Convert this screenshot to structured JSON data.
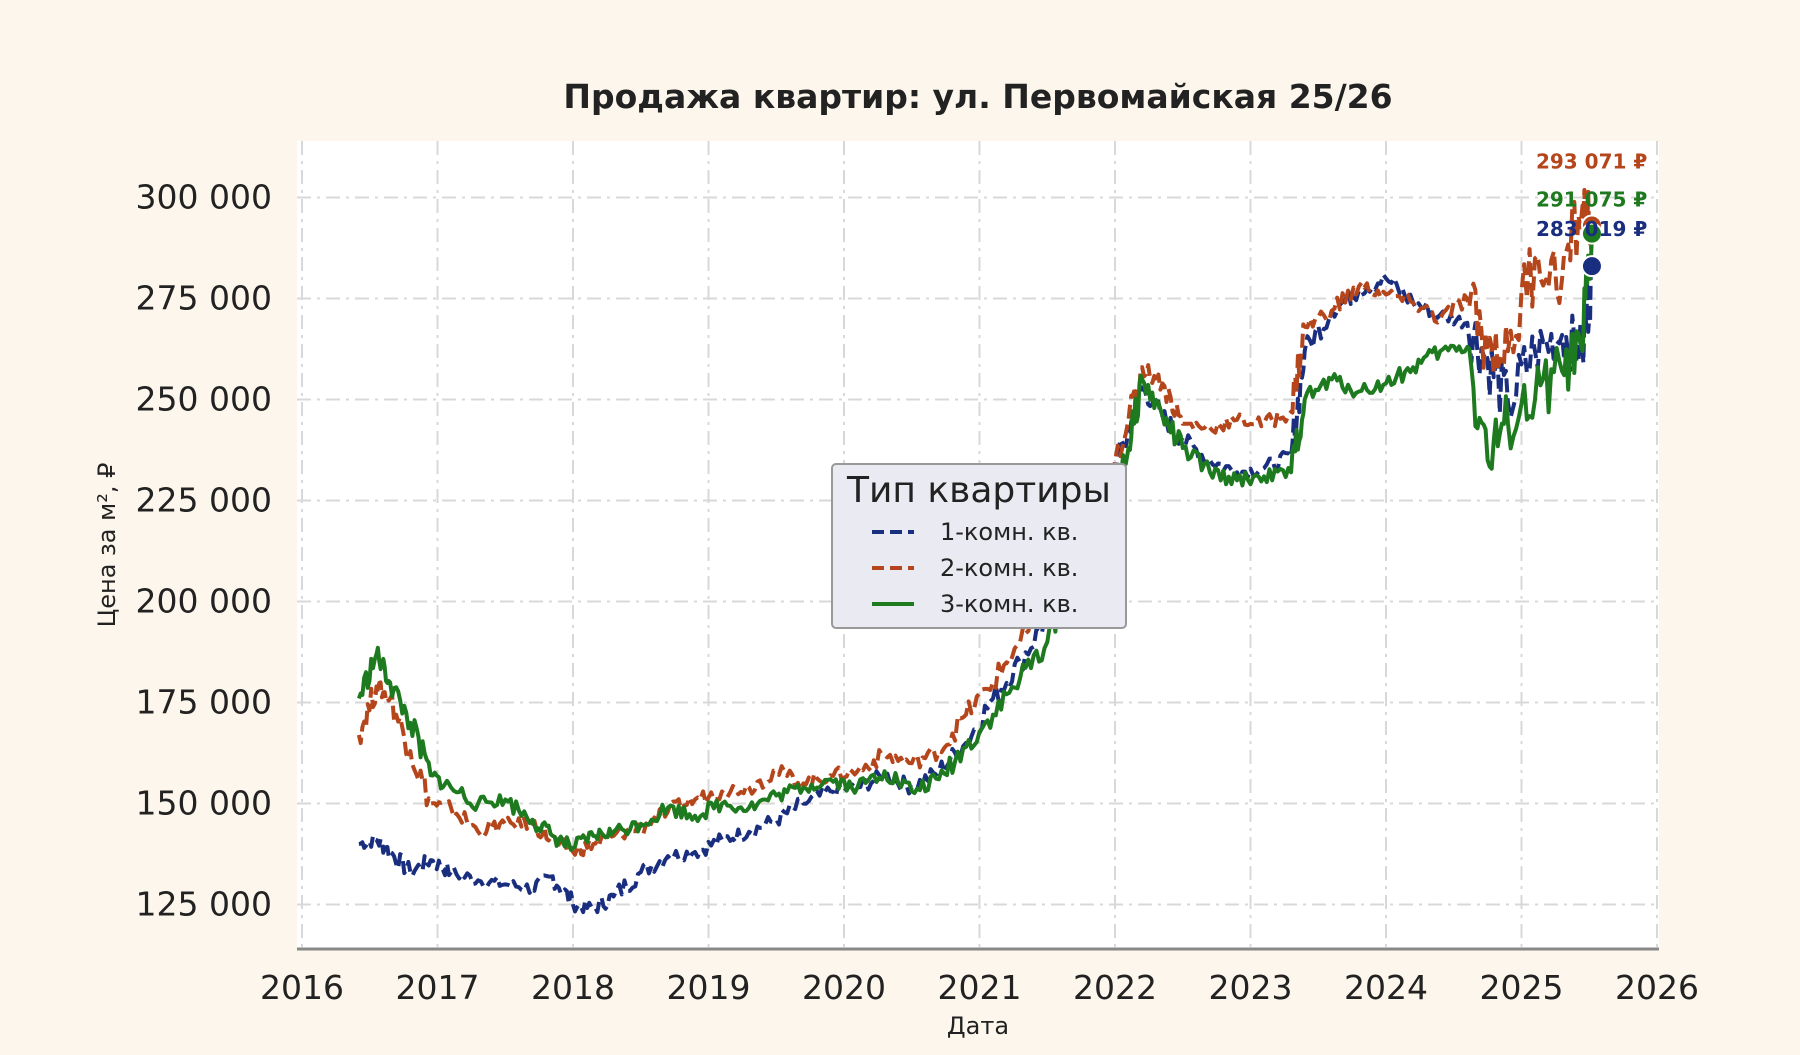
{
  "chart_data": {
    "type": "line",
    "title": "Продажа квартир: ул. Первомайская 25/26",
    "xlabel": "Дата",
    "ylabel": "Цена за м², ₽",
    "xlim": [
      2016,
      2026
    ],
    "ylim": [
      114000,
      314000
    ],
    "x_ticks": [
      "2016",
      "2017",
      "2018",
      "2019",
      "2020",
      "2021",
      "2022",
      "2023",
      "2024",
      "2025",
      "2026"
    ],
    "y_ticks": [
      {
        "value": 125000,
        "label": "125 000"
      },
      {
        "value": 150000,
        "label": "150 000"
      },
      {
        "value": 175000,
        "label": "175 000"
      },
      {
        "value": 200000,
        "label": "200 000"
      },
      {
        "value": 225000,
        "label": "225 000"
      },
      {
        "value": 250000,
        "label": "250 000"
      },
      {
        "value": 275000,
        "label": "275 000"
      },
      {
        "value": 300000,
        "label": "300 000"
      }
    ],
    "grid": true,
    "legend": {
      "title": "Тип квартиры",
      "placement": "center"
    },
    "series": [
      {
        "name": "1-комн. кв.",
        "color": "#1a2e80",
        "style": "dashed",
        "x": [
          2016.42,
          2016.55,
          2016.65,
          2016.8,
          2016.95,
          2017.1,
          2017.3,
          2017.5,
          2017.7,
          2017.85,
          2018.0,
          2018.15,
          2018.3,
          2018.5,
          2018.7,
          2018.9,
          2019.1,
          2019.3,
          2019.5,
          2019.7,
          2019.9,
          2020.1,
          2020.3,
          2020.5,
          2020.7,
          2020.9,
          2021.1,
          2021.3,
          2021.5,
          2021.7,
          2021.9,
          2022.1,
          2022.2,
          2022.35,
          2022.5,
          2022.7,
          2022.9,
          2023.1,
          2023.3,
          2023.4,
          2023.6,
          2023.8,
          2024.0,
          2024.2,
          2024.4,
          2024.6,
          2024.75,
          2024.9,
          2025.1,
          2025.3,
          2025.45,
          2025.52
        ],
        "values": [
          140000,
          141000,
          138000,
          133000,
          136000,
          133000,
          131000,
          130000,
          129000,
          132000,
          125000,
          124000,
          127000,
          133000,
          137000,
          138000,
          141000,
          143000,
          146000,
          150000,
          153000,
          154000,
          157000,
          154000,
          158000,
          165000,
          176000,
          185000,
          196000,
          210000,
          222000,
          242000,
          253000,
          246000,
          240000,
          235000,
          232000,
          233000,
          236000,
          262000,
          272000,
          277000,
          280000,
          274000,
          271000,
          269000,
          260000,
          249000,
          262000,
          266000,
          262000,
          283019
        ]
      },
      {
        "name": "2-комн. кв.",
        "color": "#b5451b",
        "style": "dashed",
        "x": [
          2016.42,
          2016.55,
          2016.65,
          2016.8,
          2016.95,
          2017.1,
          2017.3,
          2017.5,
          2017.7,
          2017.85,
          2018.0,
          2018.15,
          2018.3,
          2018.5,
          2018.7,
          2018.9,
          2019.1,
          2019.3,
          2019.5,
          2019.7,
          2019.9,
          2020.1,
          2020.3,
          2020.5,
          2020.7,
          2020.9,
          2021.1,
          2021.3,
          2021.5,
          2021.7,
          2021.9,
          2022.1,
          2022.2,
          2022.35,
          2022.5,
          2022.7,
          2022.9,
          2023.1,
          2023.3,
          2023.4,
          2023.6,
          2023.8,
          2024.0,
          2024.2,
          2024.4,
          2024.6,
          2024.75,
          2024.9,
          2025.1,
          2025.3,
          2025.45,
          2025.52
        ],
        "values": [
          167000,
          179000,
          176000,
          163000,
          150000,
          149000,
          143000,
          145000,
          145000,
          141000,
          138000,
          140000,
          142000,
          144000,
          148000,
          151000,
          153000,
          154000,
          158000,
          155000,
          157000,
          158000,
          162000,
          160000,
          163000,
          172000,
          180000,
          190000,
          198000,
          212000,
          228000,
          245000,
          258000,
          254000,
          244000,
          243000,
          245000,
          244000,
          247000,
          268000,
          272000,
          278000,
          276000,
          274000,
          270000,
          275000,
          263000,
          262000,
          285000,
          280000,
          298000,
          293071
        ]
      },
      {
        "name": "3-комн. кв.",
        "color": "#1e7a1e",
        "style": "solid",
        "x": [
          2016.42,
          2016.55,
          2016.65,
          2016.8,
          2016.95,
          2017.1,
          2017.3,
          2017.5,
          2017.7,
          2017.85,
          2018.0,
          2018.15,
          2018.3,
          2018.5,
          2018.7,
          2018.9,
          2019.1,
          2019.3,
          2019.5,
          2019.7,
          2019.9,
          2020.1,
          2020.3,
          2020.5,
          2020.7,
          2020.9,
          2021.1,
          2021.3,
          2021.5,
          2021.7,
          2021.9,
          2022.1,
          2022.2,
          2022.35,
          2022.5,
          2022.7,
          2022.9,
          2023.1,
          2023.3,
          2023.4,
          2023.6,
          2023.8,
          2024.0,
          2024.2,
          2024.4,
          2024.6,
          2024.75,
          2024.9,
          2025.1,
          2025.3,
          2025.45,
          2025.52
        ],
        "values": [
          176000,
          187000,
          180000,
          170000,
          157000,
          154000,
          150000,
          151000,
          146000,
          142000,
          139000,
          142000,
          143000,
          145000,
          149000,
          147000,
          150000,
          149000,
          152000,
          154000,
          156000,
          154000,
          158000,
          153000,
          156000,
          164000,
          172000,
          181000,
          190000,
          208000,
          220000,
          238000,
          255000,
          246000,
          238000,
          232000,
          230000,
          231000,
          232000,
          250000,
          255000,
          252000,
          254000,
          258000,
          262000,
          263000,
          235000,
          244000,
          250000,
          257000,
          262000,
          291075
        ]
      }
    ],
    "end_labels": [
      {
        "series": "1-комн. кв.",
        "text": "283 019 ₽",
        "color": "#1a2e80"
      },
      {
        "series": "2-комн. кв.",
        "text": "293 071 ₽",
        "color": "#b5451b"
      },
      {
        "series": "3-комн. кв.",
        "text": "291 075 ₽",
        "color": "#1e7a1e"
      }
    ]
  }
}
